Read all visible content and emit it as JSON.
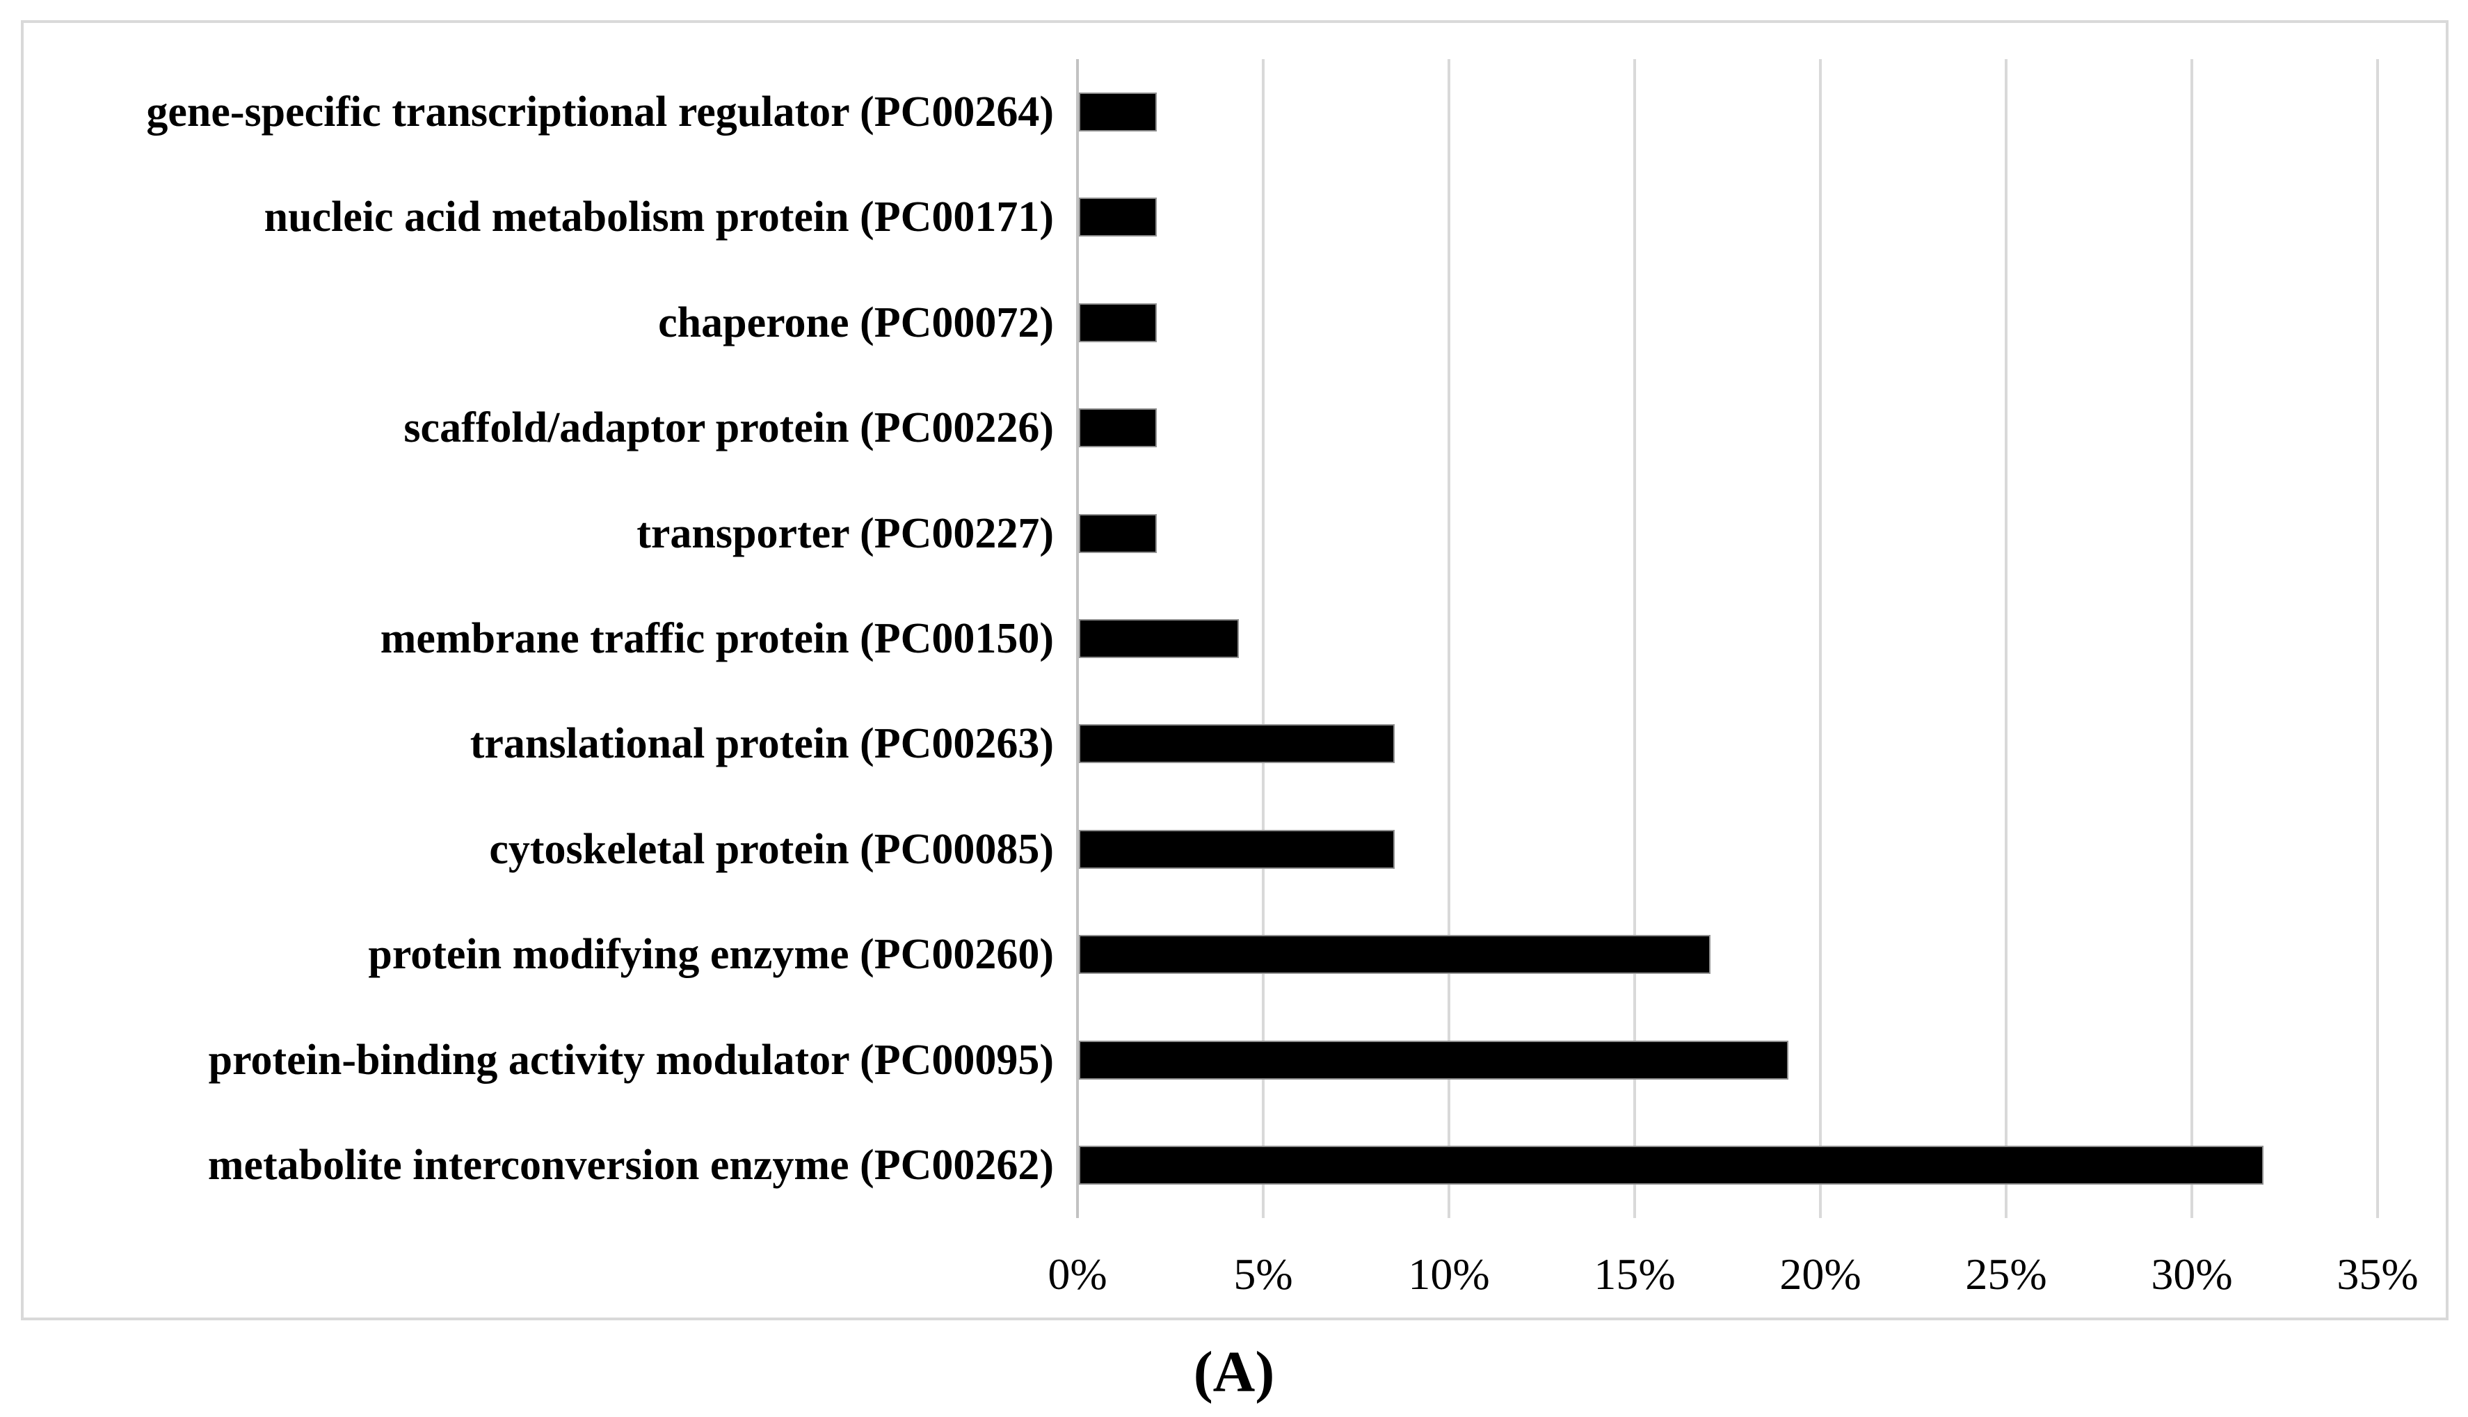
{
  "figure": {
    "caption": "(A)"
  },
  "chart_data": {
    "type": "bar",
    "orientation": "horizontal",
    "title": "",
    "xlabel": "",
    "ylabel": "",
    "categories": [
      "gene-specific transcriptional regulator (PC00264)",
      "nucleic acid metabolism protein (PC00171)",
      "chaperone (PC00072)",
      "scaffold/adaptor protein (PC00226)",
      "transporter (PC00227)",
      "membrane traffic protein (PC00150)",
      "translational protein (PC00263)",
      "cytoskeletal protein (PC00085)",
      "protein modifying enzyme (PC00260)",
      "protein-binding activity modulator (PC00095)",
      "metabolite interconversion enzyme (PC00262)"
    ],
    "values": [
      2.1,
      2.1,
      2.1,
      2.1,
      2.1,
      4.3,
      8.5,
      8.5,
      17.0,
      19.1,
      31.9
    ],
    "value_unit": "%",
    "xlim": [
      0,
      35
    ],
    "x_tick_interval": 5,
    "x_tick_labels": [
      "0%",
      "5%",
      "10%",
      "15%",
      "20%",
      "25%",
      "30%",
      "35%"
    ],
    "grid": true,
    "legend": false,
    "bar_color": "#000000",
    "gridline_color": "#d9d9d9",
    "axis_line_color": "#c2c2c2",
    "plot_border_color": "#d9d9d9",
    "background_color": "#ffffff"
  }
}
